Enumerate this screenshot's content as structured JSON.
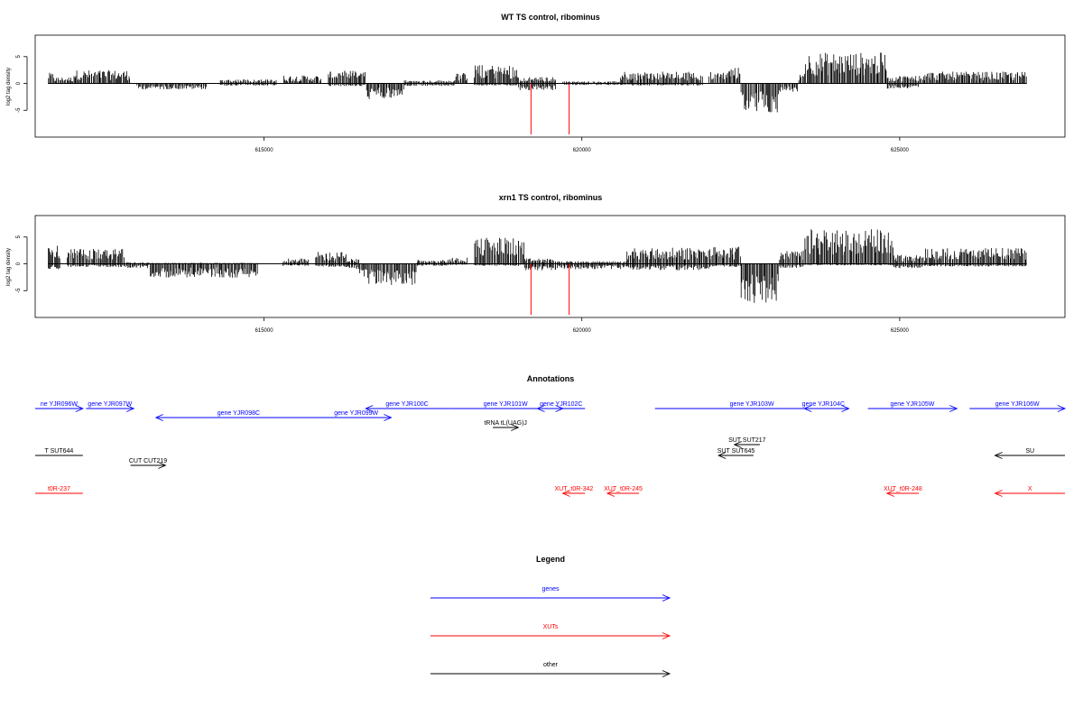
{
  "chart_data": [
    {
      "type": "bar",
      "title": "WT TS control, ribominus",
      "ylabel": "log2 tag density",
      "xticks": [
        615000,
        620000,
        625000
      ],
      "xtick_labels": [
        "615000",
        "620000",
        "625000"
      ],
      "yticks": [
        -5,
        0,
        5
      ],
      "xlim": [
        611400,
        627600
      ],
      "ylim": [
        -10,
        9
      ],
      "baseline": {
        "from": 611600,
        "to": 627000
      },
      "markers": [
        619200,
        619800
      ],
      "marker_color": "#ff0000",
      "bar_color": "#000000",
      "profile": [
        [
          611600,
          611700,
          2.0,
          0.8
        ],
        [
          611700,
          612000,
          1.2,
          0.5
        ],
        [
          612000,
          612900,
          2.5,
          0.5
        ],
        [
          613000,
          614100,
          0,
          -1.1
        ],
        [
          614300,
          615200,
          0.8,
          -0.4
        ],
        [
          615300,
          615900,
          1.5,
          0
        ],
        [
          616000,
          616600,
          2.4,
          -0.5
        ],
        [
          616600,
          617200,
          0,
          -3.0
        ],
        [
          617200,
          618000,
          0.6,
          -0.5
        ],
        [
          618000,
          618200,
          2.0,
          0
        ],
        [
          618300,
          619000,
          3.5,
          -0.4
        ],
        [
          619000,
          619600,
          1.2,
          -1.3
        ],
        [
          619700,
          620600,
          0.4,
          -0.3
        ],
        [
          620600,
          621900,
          2.2,
          -0.4
        ],
        [
          622000,
          622300,
          2.2,
          0
        ],
        [
          622300,
          622500,
          3.0,
          0
        ],
        [
          622500,
          623100,
          0,
          -5.5
        ],
        [
          623100,
          623400,
          0,
          -1.6
        ],
        [
          623400,
          623500,
          2.0,
          0
        ],
        [
          623500,
          624800,
          5.8,
          0
        ],
        [
          624800,
          625300,
          1.5,
          -1.0
        ],
        [
          625300,
          627000,
          2.2,
          0.2
        ]
      ]
    },
    {
      "type": "bar",
      "title": "xrn1 TS control, ribominus",
      "ylabel": "log2 tag density",
      "xticks": [
        615000,
        620000,
        625000
      ],
      "xtick_labels": [
        "615000",
        "620000",
        "625000"
      ],
      "yticks": [
        -5,
        0,
        5
      ],
      "xlim": [
        611400,
        627600
      ],
      "ylim": [
        -10,
        9
      ],
      "baseline": {
        "from": 611600,
        "to": 627000
      },
      "markers": [
        619200,
        619800
      ],
      "marker_color": "#ff0000",
      "bar_color": "#000000",
      "profile": [
        [
          611600,
          611800,
          4.0,
          -1.0
        ],
        [
          611900,
          612800,
          2.8,
          -0.6
        ],
        [
          612800,
          613200,
          0.3,
          -0.8
        ],
        [
          613200,
          614900,
          0.2,
          -2.6
        ],
        [
          615300,
          615700,
          1.0,
          -0.4
        ],
        [
          615800,
          616300,
          2.2,
          -0.6
        ],
        [
          616300,
          616500,
          1.0,
          -1.0
        ],
        [
          616500,
          617400,
          0,
          -4.0
        ],
        [
          617400,
          617900,
          0.8,
          -0.4
        ],
        [
          617900,
          618200,
          1.2,
          -0.2
        ],
        [
          618300,
          619100,
          5.0,
          -0.4
        ],
        [
          619100,
          619600,
          1.0,
          -1.2
        ],
        [
          619600,
          620700,
          0.5,
          -1.0
        ],
        [
          620700,
          622000,
          3.0,
          -1.2
        ],
        [
          622000,
          622500,
          3.2,
          -0.6
        ],
        [
          622500,
          623100,
          0,
          -7.5
        ],
        [
          623100,
          623500,
          2.5,
          -0.8
        ],
        [
          623500,
          624900,
          6.5,
          -0.3
        ],
        [
          624900,
          625400,
          1.8,
          -0.8
        ],
        [
          625400,
          627000,
          3.0,
          -0.5
        ]
      ]
    }
  ],
  "annotations": {
    "title": "Annotations",
    "rows": [
      [
        {
          "label": "ne YJR096W",
          "from": 611400,
          "to": 612150,
          "dir": "right",
          "color": "#0000ff"
        },
        {
          "label": "gene YJR097W",
          "from": 612200,
          "to": 612950,
          "dir": "right",
          "color": "#0000ff"
        },
        {
          "label": "gene YJR100C",
          "from": 616600,
          "to": 617900,
          "dir": "left",
          "color": "#0000ff"
        },
        {
          "label": "gene YJR101W",
          "from": 617900,
          "to": 619700,
          "dir": "right",
          "color": "#0000ff"
        },
        {
          "label": "gene YJR102C",
          "from": 619300,
          "to": 620050,
          "dir": "left",
          "color": "#0000ff"
        },
        {
          "label": "gene YJR103W",
          "from": 621150,
          "to": 624200,
          "dir": "right",
          "color": "#0000ff"
        },
        {
          "label": "gene YJR104C",
          "from": 623500,
          "to": 624100,
          "dir": "left",
          "color": "#0000ff"
        },
        {
          "label": "gene YJR105W",
          "from": 624500,
          "to": 625900,
          "dir": "right",
          "color": "#0000ff"
        },
        {
          "label": "gene YJR106W",
          "from": 626100,
          "to": 627600,
          "dir": "right",
          "color": "#0000ff"
        }
      ],
      [
        {
          "label": "gene YJR098C",
          "from": 613300,
          "to": 615900,
          "dir": "left",
          "color": "#0000ff"
        },
        {
          "label": "gene YJR099W",
          "from": 615900,
          "to": 617000,
          "dir": "right",
          "color": "#0000ff"
        }
      ],
      [
        {
          "label": "tRNA tL(UAG)J",
          "from": 618600,
          "to": 619000,
          "dir": "right",
          "color": "#000000"
        }
      ],
      [
        {
          "label": "SUT SUT217",
          "from": 622400,
          "to": 622800,
          "dir": "left",
          "color": "#000000"
        }
      ],
      [
        {
          "label": "T SUT644",
          "from": 611400,
          "to": 612150,
          "dir": "none",
          "color": "#000000"
        },
        {
          "label": "SUT SUT645",
          "from": 622150,
          "to": 622700,
          "dir": "left",
          "color": "#000000"
        },
        {
          "label": "SU",
          "from": 626500,
          "to": 627600,
          "dir": "left",
          "color": "#000000"
        }
      ],
      [
        {
          "label": "CUT CUT219",
          "from": 612900,
          "to": 613450,
          "dir": "right",
          "color": "#000000"
        }
      ],
      [
        {
          "label": "t0R-237",
          "from": 611400,
          "to": 612150,
          "dir": "none",
          "color": "#ff0000"
        },
        {
          "label": "XUT_t0R-342",
          "from": 619700,
          "to": 620050,
          "dir": "left",
          "color": "#ff0000"
        },
        {
          "label": "XUT_t0R-245",
          "from": 620400,
          "to": 620900,
          "dir": "left",
          "color": "#ff0000"
        },
        {
          "label": "XUT_t0R-248",
          "from": 624800,
          "to": 625300,
          "dir": "left",
          "color": "#ff0000"
        },
        {
          "label": "X",
          "from": 626500,
          "to": 627600,
          "dir": "left",
          "color": "#ff0000"
        }
      ]
    ]
  },
  "legend": {
    "title": "Legend",
    "items": [
      {
        "label": "genes",
        "color": "#0000ff"
      },
      {
        "label": "XUTs",
        "color": "#ff0000"
      },
      {
        "label": "other",
        "color": "#000000"
      }
    ]
  }
}
